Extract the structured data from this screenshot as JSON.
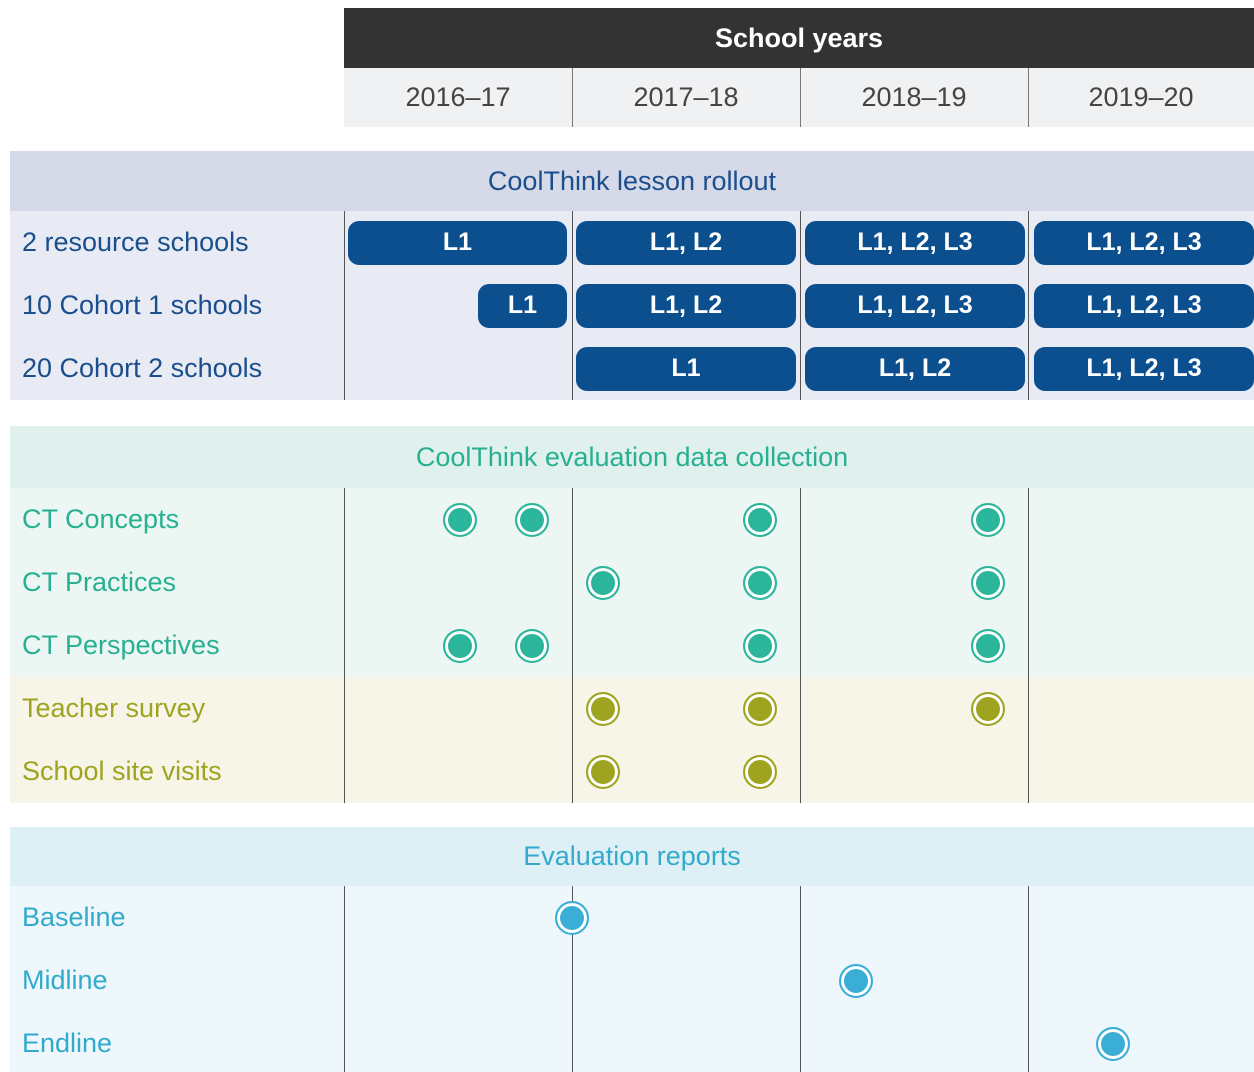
{
  "header": {
    "title": "School years",
    "years": [
      "2016–17",
      "2017–18",
      "2018–19",
      "2019–20"
    ]
  },
  "sections": [
    {
      "title": "CoolThink lesson rollout",
      "rows": [
        {
          "label": "2 resource schools",
          "bars": [
            "L1",
            "L1, L2",
            "L1, L2, L3",
            "L1, L2, L3"
          ]
        },
        {
          "label": "10 Cohort 1 schools",
          "bars": [
            "L1",
            "L1, L2",
            "L1, L2, L3",
            "L1, L2, L3"
          ]
        },
        {
          "label": "20 Cohort 2 schools",
          "bars": [
            "L1",
            "L1, L2",
            "L1, L2, L3"
          ]
        }
      ]
    },
    {
      "title": "CoolThink evaluation data collection",
      "rows": [
        {
          "label": "CT Concepts"
        },
        {
          "label": "CT Practices"
        },
        {
          "label": "CT Perspectives"
        },
        {
          "label": "Teacher survey"
        },
        {
          "label": "School site visits"
        }
      ]
    },
    {
      "title": "Evaluation reports",
      "rows": [
        {
          "label": "Baseline"
        },
        {
          "label": "Midline"
        },
        {
          "label": "Endline"
        }
      ]
    }
  ]
}
